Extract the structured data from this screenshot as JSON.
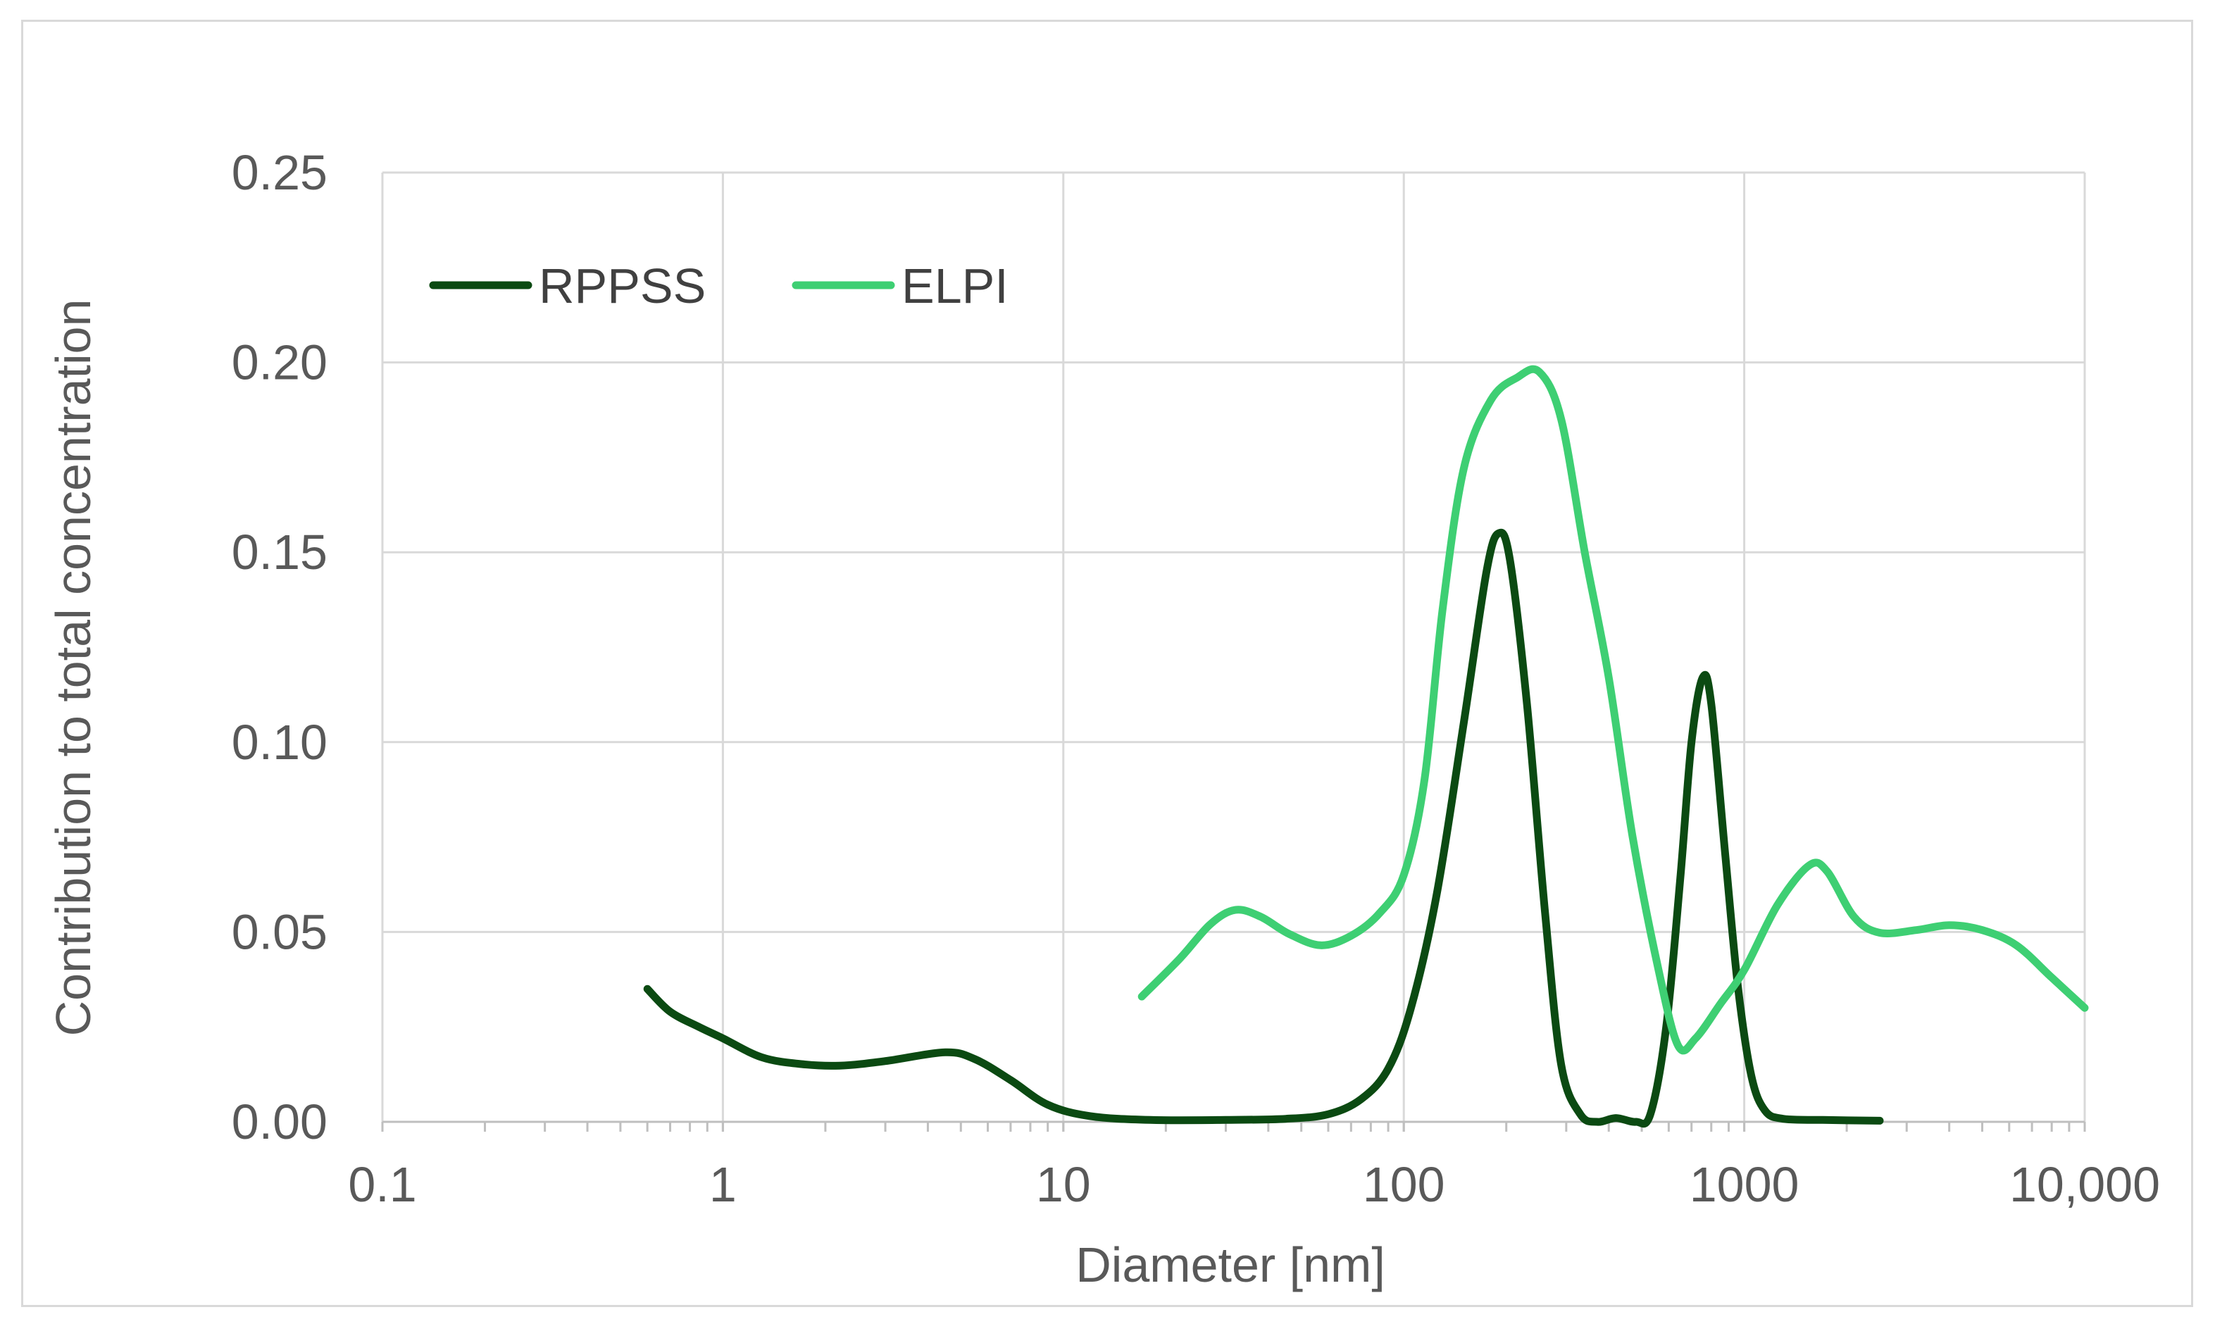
{
  "chart_data": {
    "type": "line",
    "title": "",
    "xlabel": "Diameter [nm]",
    "ylabel": "Contribution to total concentration",
    "x_scale": "log",
    "xlim": [
      0.1,
      10000
    ],
    "ylim": [
      0,
      0.25
    ],
    "x_ticks": [
      0.1,
      1,
      10,
      100,
      1000,
      10000
    ],
    "x_tick_labels": [
      "0.1",
      "1",
      "10",
      "100",
      "1000",
      "10,000"
    ],
    "y_ticks": [
      0,
      0.05,
      0.1,
      0.15,
      0.2,
      0.25
    ],
    "y_tick_labels": [
      "0.00",
      "0.05",
      "0.10",
      "0.15",
      "0.20",
      "0.25"
    ],
    "grid": true,
    "legend_position": "top-left",
    "series": [
      {
        "name": "RPPSS",
        "color": "#0b4a12",
        "points": [
          [
            0.6,
            0.035
          ],
          [
            0.7,
            0.029
          ],
          [
            0.85,
            0.025
          ],
          [
            1.0,
            0.022
          ],
          [
            1.3,
            0.017
          ],
          [
            1.7,
            0.0152
          ],
          [
            2.2,
            0.0148
          ],
          [
            3.0,
            0.016
          ],
          [
            4.5,
            0.0183
          ],
          [
            5.5,
            0.0165
          ],
          [
            7.0,
            0.011
          ],
          [
            9.0,
            0.0045
          ],
          [
            12,
            0.0015
          ],
          [
            18,
            0.0005
          ],
          [
            30,
            0.0005
          ],
          [
            45,
            0.0008
          ],
          [
            60,
            0.002
          ],
          [
            75,
            0.006
          ],
          [
            90,
            0.014
          ],
          [
            105,
            0.03
          ],
          [
            125,
            0.06
          ],
          [
            150,
            0.105
          ],
          [
            175,
            0.145
          ],
          [
            190,
            0.155
          ],
          [
            205,
            0.148
          ],
          [
            230,
            0.11
          ],
          [
            260,
            0.055
          ],
          [
            290,
            0.015
          ],
          [
            330,
            0.002
          ],
          [
            370,
            0.0
          ],
          [
            420,
            0.001
          ],
          [
            480,
            0.0
          ],
          [
            530,
            0.002
          ],
          [
            590,
            0.025
          ],
          [
            650,
            0.065
          ],
          [
            700,
            0.1
          ],
          [
            755,
            0.117
          ],
          [
            800,
            0.11
          ],
          [
            880,
            0.07
          ],
          [
            960,
            0.035
          ],
          [
            1050,
            0.012
          ],
          [
            1150,
            0.003
          ],
          [
            1300,
            0.0008
          ],
          [
            1700,
            0.0005
          ],
          [
            2500,
            0.0003
          ]
        ]
      },
      {
        "name": "ELPI",
        "color": "#3ecf73",
        "points": [
          [
            17,
            0.033
          ],
          [
            22,
            0.043
          ],
          [
            27,
            0.052
          ],
          [
            32,
            0.0558
          ],
          [
            38,
            0.054
          ],
          [
            46,
            0.0495
          ],
          [
            57,
            0.0465
          ],
          [
            70,
            0.049
          ],
          [
            85,
            0.055
          ],
          [
            100,
            0.065
          ],
          [
            115,
            0.09
          ],
          [
            130,
            0.135
          ],
          [
            150,
            0.172
          ],
          [
            180,
            0.19
          ],
          [
            215,
            0.196
          ],
          [
            250,
            0.1975
          ],
          [
            290,
            0.185
          ],
          [
            340,
            0.15
          ],
          [
            400,
            0.117
          ],
          [
            470,
            0.075
          ],
          [
            560,
            0.04
          ],
          [
            640,
            0.02
          ],
          [
            720,
            0.022
          ],
          [
            850,
            0.031
          ],
          [
            1000,
            0.04
          ],
          [
            1250,
            0.057
          ],
          [
            1550,
            0.0675
          ],
          [
            1750,
            0.066
          ],
          [
            2100,
            0.054
          ],
          [
            2500,
            0.0498
          ],
          [
            3200,
            0.0505
          ],
          [
            4000,
            0.0518
          ],
          [
            5000,
            0.0505
          ],
          [
            6300,
            0.0465
          ],
          [
            8000,
            0.038
          ],
          [
            10000,
            0.03
          ]
        ]
      }
    ]
  }
}
